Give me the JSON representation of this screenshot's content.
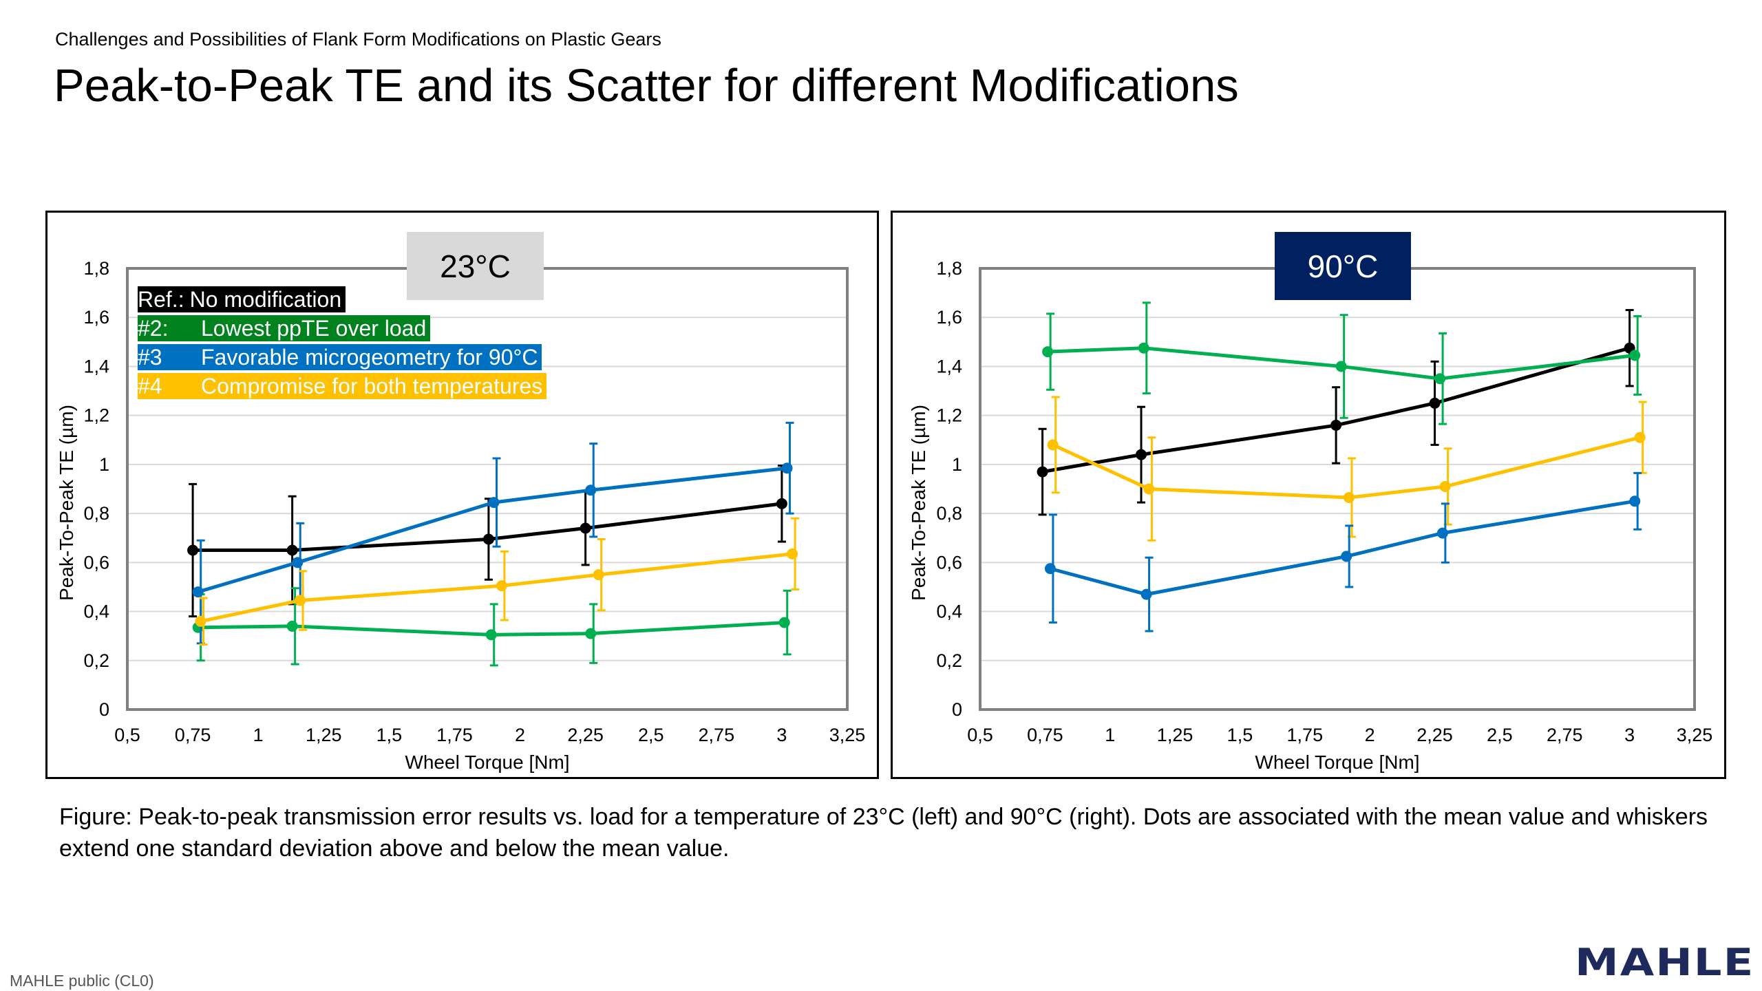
{
  "header": {
    "subtitle": "Challenges and Possibilities of Flank Form Modifications on Plastic Gears",
    "title": "Peak-to-Peak TE and its Scatter for different Modifications"
  },
  "legend": [
    {
      "tag": "Ref.:",
      "label": "No modification",
      "color": "#000000"
    },
    {
      "tag": "#2:",
      "label": "Lowest ppTE over load",
      "color": "#00821e"
    },
    {
      "tag": "#3",
      "label": "Favorable microgeometry for 90°C",
      "color": "#0070c0"
    },
    {
      "tag": "#4",
      "label": "Compromise for both temperatures",
      "color": "#ffc000"
    }
  ],
  "caption": "Figure: Peak-to-peak transmission error results vs. load for a temperature of 23°C (left) and 90°C (right).  Dots are associated with the mean value and whiskers extend one standard deviation above and below the mean value.",
  "footer": "MAHLE public (CL0)",
  "logo": "MAHLE",
  "chart_data": [
    {
      "type": "line",
      "title": "23°C",
      "title_bg": "#d9d9d9",
      "xlabel": "Wheel Torque [Nm]",
      "ylabel": "Peak-To-Peak TE (µm)",
      "xlim": [
        0.5,
        3.25
      ],
      "ylim": [
        0,
        1.8
      ],
      "grid": "horizontal",
      "xticks": [
        "0,5",
        "0,75",
        "1",
        "1,25",
        "1,5",
        "1,75",
        "2",
        "2,25",
        "2,5",
        "2,75",
        "3",
        "3,25"
      ],
      "yticks": [
        "0",
        "0,2",
        "0,4",
        "0,6",
        "0,8",
        "1",
        "1,2",
        "1,4",
        "1,6",
        "1,8"
      ],
      "series": [
        {
          "name": "Ref.: No modification",
          "color": "#000000",
          "x": [
            0.75,
            1.13,
            1.88,
            2.25,
            3.0
          ],
          "y": [
            0.65,
            0.65,
            0.695,
            0.74,
            0.84
          ],
          "sd": [
            0.27,
            0.22,
            0.165,
            0.15,
            0.155
          ]
        },
        {
          "name": "#2: Lowest ppTE over load",
          "color": "#00b050",
          "x": [
            0.77,
            1.13,
            1.89,
            2.27,
            3.01
          ],
          "y": [
            0.335,
            0.34,
            0.305,
            0.31,
            0.355
          ],
          "sd": [
            0.135,
            0.155,
            0.125,
            0.12,
            0.13
          ]
        },
        {
          "name": "#3 Favorable microgeometry for 90°C",
          "color": "#0070c0",
          "x": [
            0.77,
            1.15,
            1.9,
            2.27,
            3.02
          ],
          "y": [
            0.48,
            0.6,
            0.845,
            0.895,
            0.985
          ],
          "sd": [
            0.21,
            0.16,
            0.18,
            0.19,
            0.185
          ]
        },
        {
          "name": "#4 Compromise for both temperatures",
          "color": "#ffc000",
          "x": [
            0.78,
            1.16,
            1.93,
            2.3,
            3.04
          ],
          "y": [
            0.36,
            0.445,
            0.505,
            0.55,
            0.635
          ],
          "sd": [
            0.095,
            0.12,
            0.14,
            0.145,
            0.145
          ]
        }
      ]
    },
    {
      "type": "line",
      "title": "90°C",
      "title_bg": "#002060",
      "xlabel": "Wheel Torque [Nm]",
      "ylabel": "Peak-To-Peak TE (µm)",
      "xlim": [
        0.5,
        3.25
      ],
      "ylim": [
        0,
        1.8
      ],
      "grid": "horizontal",
      "xticks": [
        "0,5",
        "0,75",
        "1",
        "1,25",
        "1,5",
        "1,75",
        "2",
        "2,25",
        "2,5",
        "2,75",
        "3",
        "3,25"
      ],
      "yticks": [
        "0",
        "0,2",
        "0,4",
        "0,6",
        "0,8",
        "1",
        "1,2",
        "1,4",
        "1,6",
        "1,8"
      ],
      "series": [
        {
          "name": "Ref.: No modification",
          "color": "#000000",
          "x": [
            0.74,
            1.12,
            1.87,
            2.25,
            3.0
          ],
          "y": [
            0.97,
            1.04,
            1.16,
            1.25,
            1.475
          ],
          "sd": [
            0.175,
            0.195,
            0.155,
            0.17,
            0.155
          ]
        },
        {
          "name": "#2: Lowest ppTE over load",
          "color": "#00b050",
          "x": [
            0.76,
            1.13,
            1.89,
            2.27,
            3.02
          ],
          "y": [
            1.46,
            1.475,
            1.4,
            1.35,
            1.445
          ],
          "sd": [
            0.155,
            0.185,
            0.21,
            0.185,
            0.16
          ]
        },
        {
          "name": "#4 Compromise for both temperatures",
          "color": "#ffc000",
          "x": [
            0.78,
            1.15,
            1.92,
            2.29,
            3.04
          ],
          "y": [
            1.08,
            0.9,
            0.865,
            0.91,
            1.11
          ],
          "sd": [
            0.195,
            0.21,
            0.16,
            0.155,
            0.145
          ]
        },
        {
          "name": "#3 Favorable microgeometry for 90°C",
          "color": "#0070c0",
          "x": [
            0.77,
            1.14,
            1.91,
            2.28,
            3.02
          ],
          "y": [
            0.575,
            0.47,
            0.625,
            0.72,
            0.85
          ],
          "sd": [
            0.22,
            0.15,
            0.125,
            0.12,
            0.115
          ]
        }
      ]
    }
  ]
}
